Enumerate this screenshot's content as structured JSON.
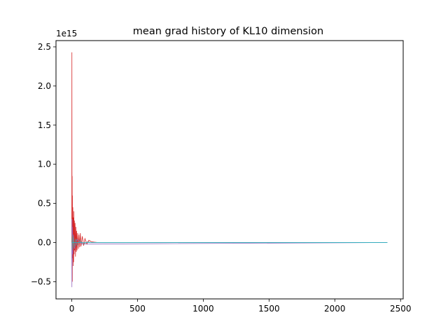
{
  "chart_data": {
    "type": "line",
    "title": "mean grad history of KL10 dimension",
    "xlabel": "",
    "ylabel": "",
    "y_offset_label": "1e15",
    "xlim": [
      -120,
      2520
    ],
    "ylim": [
      -0.72,
      2.58
    ],
    "xticks": [
      0,
      500,
      1000,
      1500,
      2000,
      2500
    ],
    "xtick_labels": [
      "0",
      "500",
      "1000",
      "1500",
      "2000",
      "2500"
    ],
    "yticks": [
      -0.5,
      0.0,
      0.5,
      1.0,
      1.5,
      2.0,
      2.5
    ],
    "ytick_labels": [
      "−0.5",
      "0.0",
      "0.5",
      "1.0",
      "1.5",
      "2.0",
      "2.5"
    ],
    "grid": false,
    "legend": "none",
    "colors": {
      "red": "#d62728",
      "purple": "#9467bd",
      "gray": "#7f7f7f",
      "cyan": "#17becf",
      "green": "#2ca02c",
      "blue": "#1f77b4",
      "brown": "#8c564b"
    },
    "series": [
      {
        "color": "#d62728",
        "x": [
          0,
          1,
          2,
          3,
          4,
          5,
          6,
          8,
          10,
          12,
          14,
          16,
          18,
          20,
          22,
          25,
          28,
          31,
          34,
          37,
          40,
          45,
          50,
          55,
          60,
          65,
          70,
          80,
          90,
          100,
          115,
          130,
          150,
          170,
          200,
          2400
        ],
        "y": [
          0.0,
          2.43,
          -0.35,
          0.85,
          -0.5,
          0.6,
          -0.2,
          0.45,
          -0.3,
          0.32,
          -0.25,
          0.4,
          -0.15,
          0.28,
          -0.1,
          0.25,
          -0.18,
          0.2,
          -0.12,
          0.15,
          -0.1,
          0.12,
          -0.08,
          0.1,
          -0.06,
          0.12,
          -0.05,
          0.08,
          -0.04,
          0.05,
          -0.02,
          0.03,
          0.01,
          0.005,
          0.0,
          0.0
        ]
      },
      {
        "color": "#9467bd",
        "x": [
          0,
          1,
          2,
          3,
          5,
          8,
          12,
          20,
          40,
          80,
          2400
        ],
        "y": [
          0.0,
          -0.57,
          0.3,
          -0.3,
          0.2,
          -0.15,
          0.1,
          -0.08,
          0.04,
          -0.02,
          0.0
        ]
      },
      {
        "color": "#7f7f7f",
        "x": [
          0,
          2,
          4,
          6,
          10,
          15,
          20,
          30,
          40,
          60,
          90,
          120,
          150,
          2400
        ],
        "y": [
          0.0,
          0.08,
          -0.1,
          0.1,
          -0.08,
          0.07,
          -0.06,
          0.05,
          -0.04,
          0.03,
          -0.02,
          0.01,
          0.0,
          0.0
        ]
      },
      {
        "color": "#17becf",
        "x": [
          0,
          2400
        ],
        "y": [
          0.0,
          0.0
        ]
      }
    ]
  }
}
